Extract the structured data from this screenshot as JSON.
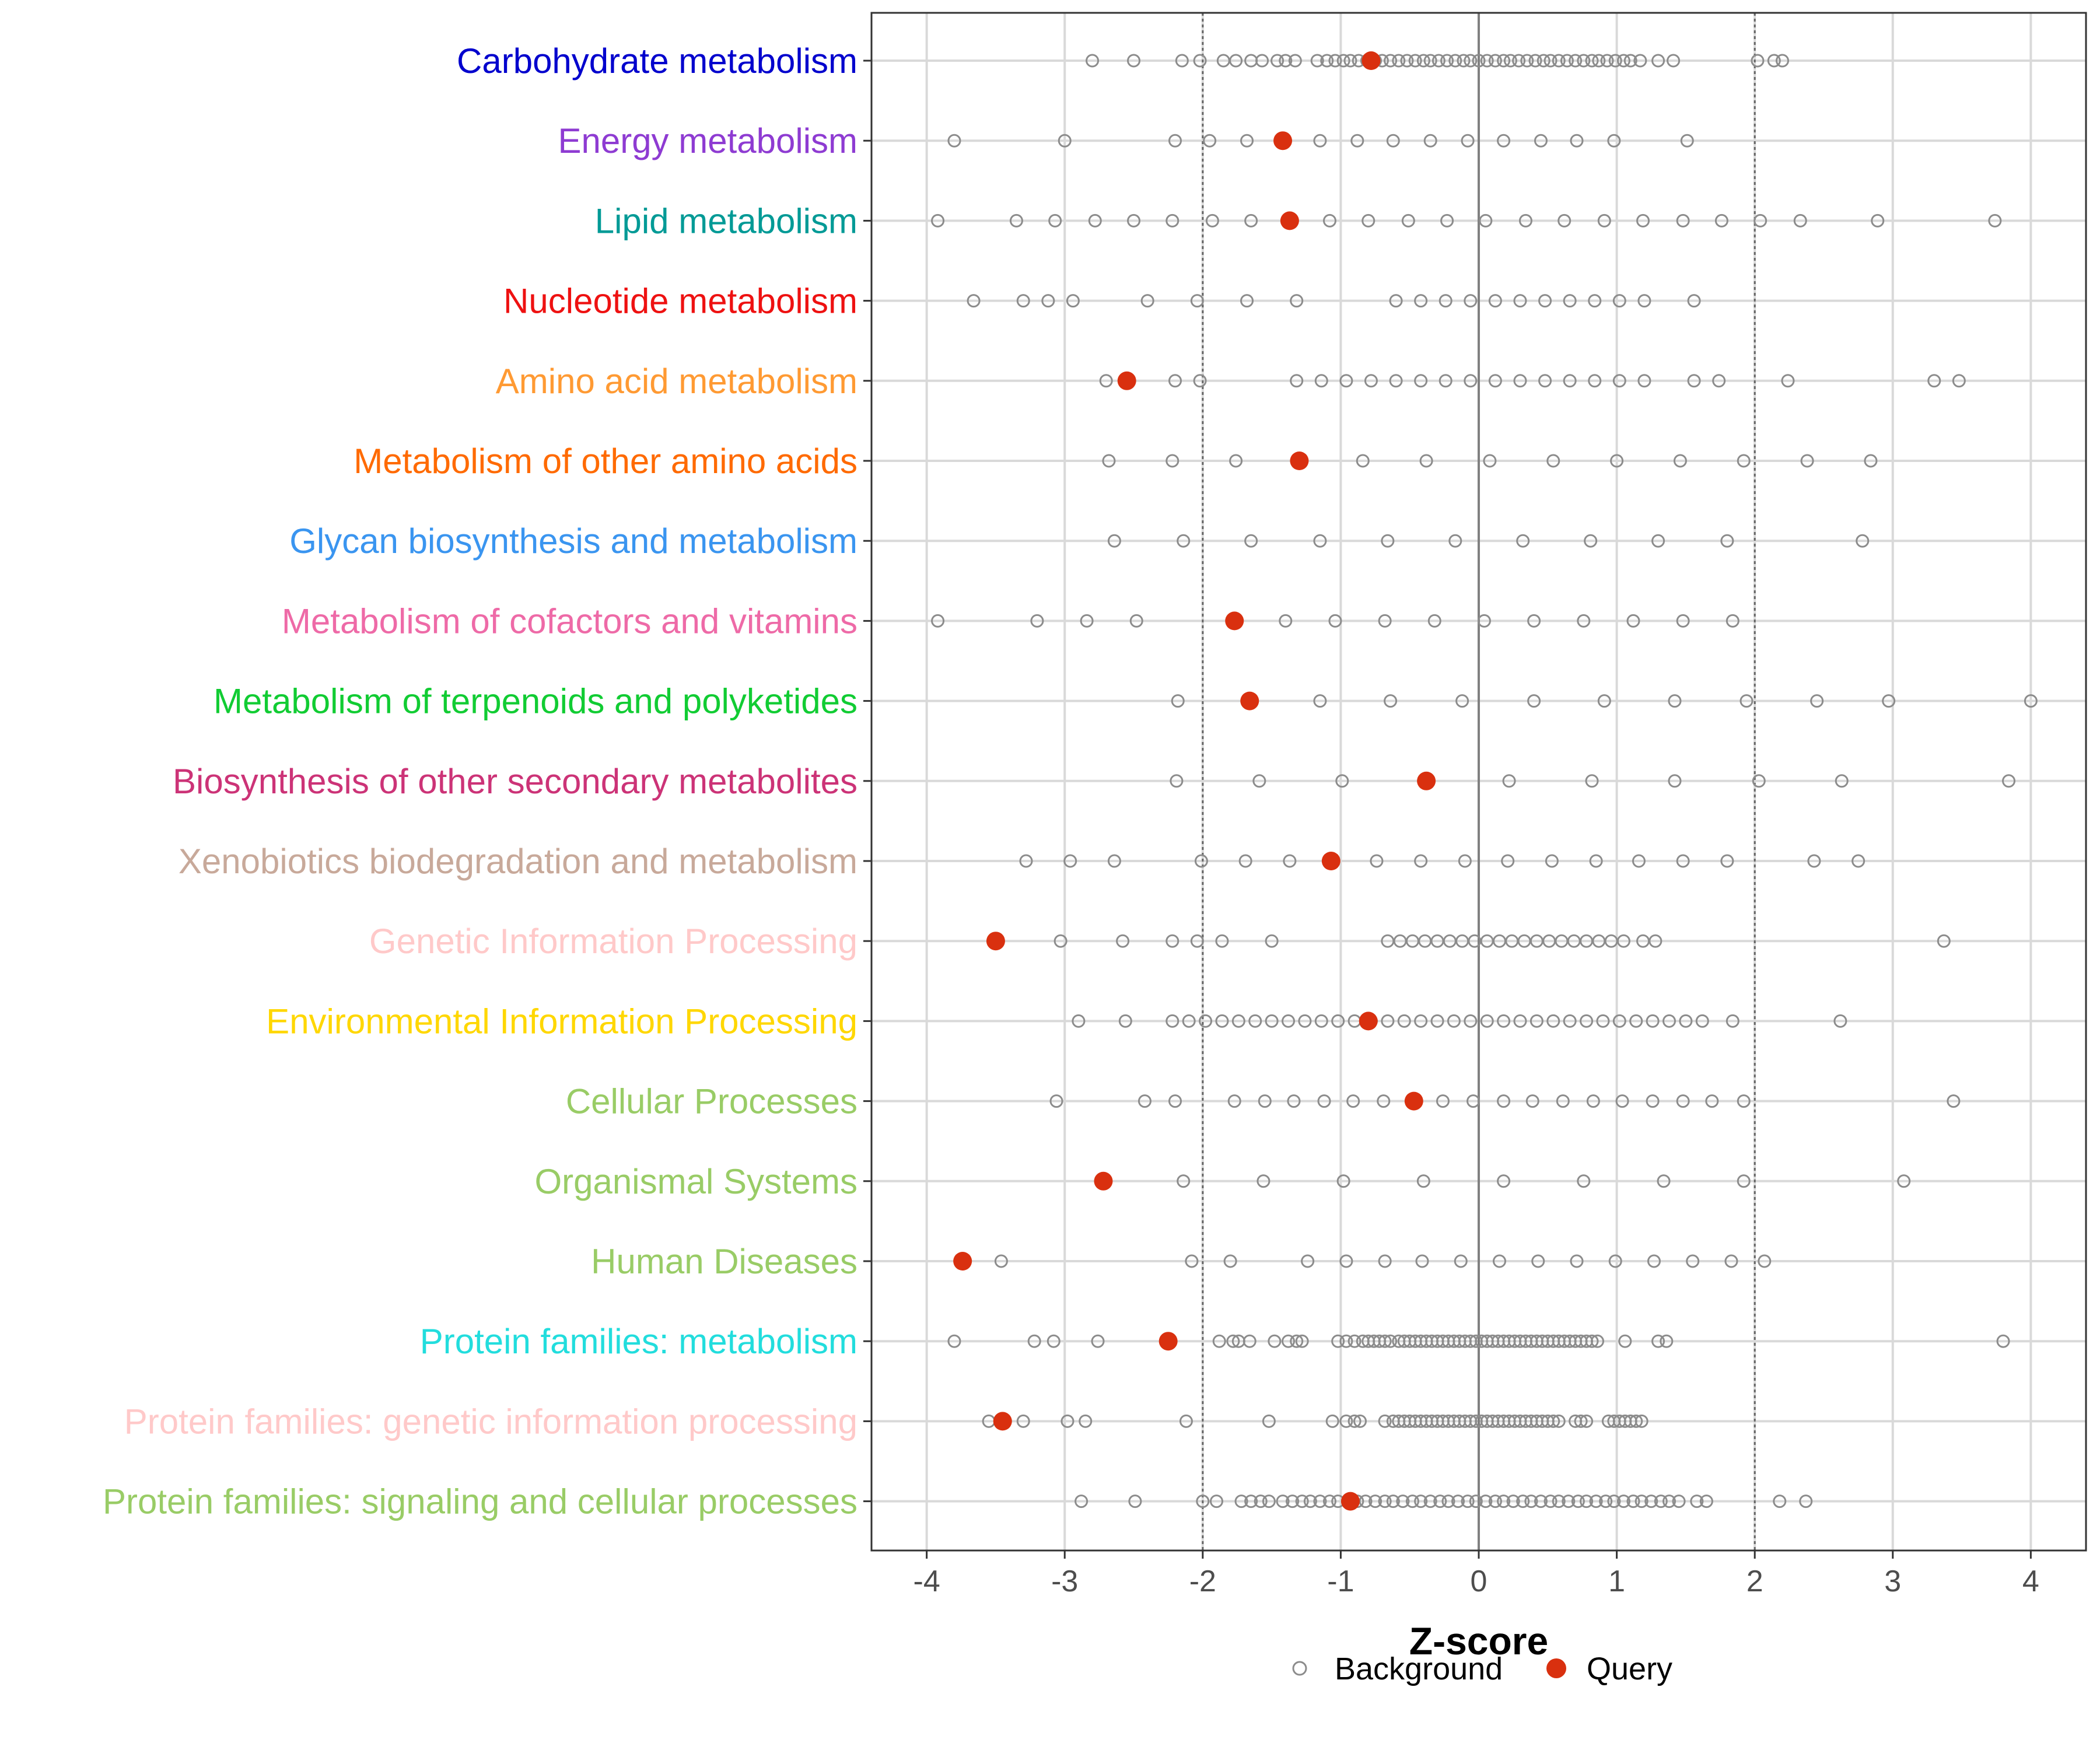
{
  "chart_data": {
    "type": "scatter",
    "title": "",
    "xlabel": "Z-score",
    "ylabel": "",
    "xlim": [
      -4.4,
      4.4
    ],
    "x_ticks": [
      -4,
      -3,
      -2,
      -1,
      0,
      1,
      2,
      3,
      4
    ],
    "x_tick_labels": [
      "-4",
      "-3",
      "-2",
      "-1",
      "0",
      "1",
      "2",
      "3",
      "4"
    ],
    "reference_lines": [
      -2,
      0,
      2
    ],
    "legend": {
      "position": "bottom",
      "entries": [
        {
          "name": "Background",
          "style": "open-circle",
          "color": "#8c8c8c"
        },
        {
          "name": "Query",
          "style": "filled-circle",
          "color": "#d9300f"
        }
      ]
    },
    "categories": [
      {
        "label": "Carbohydrate metabolism",
        "color": "#0000cd",
        "query": -0.78,
        "background": [
          -2.8,
          -2.5,
          -2.15,
          -2.02,
          -1.85,
          -1.76,
          -1.65,
          -1.57,
          -1.46,
          -1.4,
          -1.33,
          -1.17,
          -1.1,
          -1.04,
          -0.98,
          -0.93,
          -0.87,
          -0.81,
          -0.75,
          -0.7,
          -0.64,
          -0.58,
          -0.52,
          -0.46,
          -0.4,
          -0.35,
          -0.29,
          -0.23,
          -0.17,
          -0.11,
          -0.06,
          0.0,
          0.06,
          0.12,
          0.18,
          0.23,
          0.29,
          0.35,
          0.41,
          0.47,
          0.52,
          0.58,
          0.64,
          0.7,
          0.76,
          0.82,
          0.87,
          0.93,
          0.99,
          1.05,
          1.1,
          1.17,
          1.3,
          1.41,
          2.02,
          2.14,
          2.2
        ]
      },
      {
        "label": "Energy metabolism",
        "color": "#8e3bd2",
        "query": -1.42,
        "background": [
          -3.8,
          -3.0,
          -2.2,
          -1.95,
          -1.68,
          -1.15,
          -0.88,
          -0.62,
          -0.35,
          -0.08,
          0.18,
          0.45,
          0.71,
          0.98,
          1.51
        ]
      },
      {
        "label": "Lipid metabolism",
        "color": "#009a96",
        "query": -1.37,
        "background": [
          -3.92,
          -3.35,
          -3.07,
          -2.78,
          -2.5,
          -2.22,
          -1.93,
          -1.65,
          -1.08,
          -0.8,
          -0.51,
          -0.23,
          0.05,
          0.34,
          0.62,
          0.91,
          1.19,
          1.48,
          1.76,
          2.04,
          2.33,
          2.89,
          3.74
        ]
      },
      {
        "label": "Nucleotide metabolism",
        "color": "#ee1111",
        "query": null,
        "background": [
          -3.66,
          -3.3,
          -3.12,
          -2.94,
          -2.4,
          -2.04,
          -1.68,
          -1.32,
          -0.6,
          -0.42,
          -0.24,
          -0.06,
          0.12,
          0.3,
          0.48,
          0.66,
          0.84,
          1.02,
          1.2,
          1.56
        ]
      },
      {
        "label": "Amino acid metabolism",
        "color": "#ff9a33",
        "query": -2.55,
        "background": [
          -2.7,
          -2.2,
          -2.02,
          -1.32,
          -1.14,
          -0.96,
          -0.78,
          -0.6,
          -0.42,
          -0.24,
          -0.06,
          0.12,
          0.3,
          0.48,
          0.66,
          0.84,
          1.02,
          1.2,
          1.56,
          1.74,
          2.24,
          3.3,
          3.48
        ]
      },
      {
        "label": "Metabolism of other amino acids",
        "color": "#ff6a00",
        "query": -1.3,
        "background": [
          -2.68,
          -2.22,
          -1.76,
          -0.84,
          -0.38,
          0.08,
          0.54,
          1.0,
          1.46,
          1.92,
          2.38,
          2.84
        ]
      },
      {
        "label": "Glycan biosynthesis and metabolism",
        "color": "#3a95f0",
        "query": null,
        "background": [
          -2.64,
          -2.14,
          -1.65,
          -1.15,
          -0.66,
          -0.17,
          0.32,
          0.81,
          1.3,
          1.8,
          2.78
        ]
      },
      {
        "label": "Metabolism of cofactors and vitamins",
        "color": "#ee6aa7",
        "query": -1.77,
        "background": [
          -3.92,
          -3.2,
          -2.84,
          -2.48,
          -1.4,
          -1.04,
          -0.68,
          -0.32,
          0.04,
          0.4,
          0.76,
          1.12,
          1.48,
          1.84
        ]
      },
      {
        "label": "Metabolism of terpenoids and polyketides",
        "color": "#11cc33",
        "query": -1.66,
        "background": [
          -2.18,
          -1.15,
          -0.64,
          -0.12,
          0.4,
          0.91,
          1.42,
          1.94,
          2.45,
          2.97,
          4.0
        ]
      },
      {
        "label": "Biosynthesis of other secondary metabolites",
        "color": "#cc3377",
        "query": -0.38,
        "background": [
          -2.19,
          -1.59,
          -0.99,
          0.22,
          0.82,
          1.42,
          2.03,
          2.63,
          3.84
        ]
      },
      {
        "label": "Xenobiotics biodegradation and metabolism",
        "color": "#c8a99a",
        "query": -1.07,
        "background": [
          -3.28,
          -2.96,
          -2.64,
          -2.01,
          -1.69,
          -1.37,
          -0.74,
          -0.42,
          -0.1,
          0.21,
          0.53,
          0.85,
          1.16,
          1.48,
          1.8,
          2.43,
          2.75
        ]
      },
      {
        "label": "Genetic Information Processing",
        "color": "#ffc9c9",
        "query": -3.5,
        "background": [
          -3.03,
          -2.58,
          -2.22,
          -2.04,
          -1.86,
          -1.5,
          -0.66,
          -0.57,
          -0.48,
          -0.39,
          -0.3,
          -0.21,
          -0.12,
          -0.03,
          0.06,
          0.15,
          0.24,
          0.33,
          0.42,
          0.51,
          0.6,
          0.69,
          0.78,
          0.87,
          0.96,
          1.05,
          1.19,
          1.28,
          3.37
        ]
      },
      {
        "label": "Environmental Information Processing",
        "color": "#ffd700",
        "query": -0.8,
        "background": [
          -2.9,
          -2.56,
          -2.22,
          -2.1,
          -1.98,
          -1.86,
          -1.74,
          -1.62,
          -1.5,
          -1.38,
          -1.26,
          -1.14,
          -1.02,
          -0.9,
          -0.78,
          -0.66,
          -0.54,
          -0.42,
          -0.3,
          -0.18,
          -0.06,
          0.06,
          0.18,
          0.3,
          0.42,
          0.54,
          0.66,
          0.78,
          0.9,
          1.02,
          1.14,
          1.26,
          1.38,
          1.5,
          1.62,
          1.84,
          2.62
        ]
      },
      {
        "label": "Cellular Processes",
        "color": "#99cc66",
        "query": -0.47,
        "background": [
          -3.06,
          -2.42,
          -2.2,
          -1.77,
          -1.55,
          -1.34,
          -1.12,
          -0.91,
          -0.69,
          -0.26,
          -0.04,
          0.18,
          0.39,
          0.61,
          0.83,
          1.04,
          1.26,
          1.48,
          1.69,
          1.92,
          3.44
        ]
      },
      {
        "label": "Organismal Systems",
        "color": "#99cc66",
        "query": -2.72,
        "background": [
          -2.14,
          -1.56,
          -0.98,
          -0.4,
          0.18,
          0.76,
          1.34,
          1.92,
          3.08
        ]
      },
      {
        "label": "Human Diseases",
        "color": "#99cc66",
        "query": -3.74,
        "background": [
          -3.46,
          -2.08,
          -1.8,
          -1.24,
          -0.96,
          -0.68,
          -0.41,
          -0.13,
          0.15,
          0.43,
          0.71,
          0.99,
          1.27,
          1.55,
          1.83,
          2.07
        ]
      },
      {
        "label": "Protein families: metabolism",
        "color": "#22dddd",
        "query": -2.25,
        "background": [
          -3.8,
          -3.22,
          -3.08,
          -2.76,
          -1.88,
          -1.78,
          -1.74,
          -1.66,
          -1.48,
          -1.38,
          -1.32,
          -1.28,
          -1.02,
          -0.96,
          -0.9,
          -0.84,
          -0.8,
          -0.76,
          -0.72,
          -0.68,
          -0.64,
          -0.58,
          -0.54,
          -0.5,
          -0.46,
          -0.42,
          -0.38,
          -0.34,
          -0.3,
          -0.26,
          -0.22,
          -0.18,
          -0.14,
          -0.1,
          -0.06,
          -0.02,
          0.02,
          0.06,
          0.1,
          0.14,
          0.18,
          0.22,
          0.26,
          0.3,
          0.34,
          0.38,
          0.42,
          0.46,
          0.5,
          0.54,
          0.58,
          0.62,
          0.66,
          0.7,
          0.74,
          0.78,
          0.82,
          0.86,
          1.06,
          1.3,
          1.36,
          3.8
        ]
      },
      {
        "label": "Protein families: genetic information processing",
        "color": "#ffc9c9",
        "query": -3.45,
        "background": [
          -3.55,
          -3.3,
          -2.98,
          -2.85,
          -2.12,
          -1.52,
          -1.06,
          -0.96,
          -0.9,
          -0.86,
          -0.68,
          -0.62,
          -0.58,
          -0.54,
          -0.5,
          -0.46,
          -0.42,
          -0.38,
          -0.34,
          -0.3,
          -0.26,
          -0.22,
          -0.18,
          -0.14,
          -0.1,
          -0.06,
          -0.02,
          0.02,
          0.06,
          0.1,
          0.14,
          0.18,
          0.22,
          0.26,
          0.3,
          0.34,
          0.38,
          0.42,
          0.46,
          0.5,
          0.54,
          0.58,
          0.7,
          0.74,
          0.78,
          0.94,
          0.98,
          1.02,
          1.06,
          1.1,
          1.14,
          1.18
        ]
      },
      {
        "label": "Protein families: signaling and cellular processes",
        "color": "#99cc66",
        "query": -0.93,
        "background": [
          -2.88,
          -2.49,
          -2.0,
          -1.9,
          -1.72,
          -1.65,
          -1.58,
          -1.52,
          -1.42,
          -1.35,
          -1.28,
          -1.22,
          -1.15,
          -1.08,
          -1.02,
          -0.95,
          -0.88,
          -0.82,
          -0.75,
          -0.68,
          -0.62,
          -0.55,
          -0.48,
          -0.42,
          -0.35,
          -0.28,
          -0.22,
          -0.15,
          -0.08,
          -0.02,
          0.05,
          0.12,
          0.18,
          0.25,
          0.32,
          0.38,
          0.45,
          0.52,
          0.58,
          0.65,
          0.72,
          0.78,
          0.85,
          0.92,
          0.98,
          1.05,
          1.12,
          1.18,
          1.25,
          1.32,
          1.38,
          1.45,
          1.58,
          1.65,
          2.18,
          2.37
        ]
      }
    ]
  }
}
